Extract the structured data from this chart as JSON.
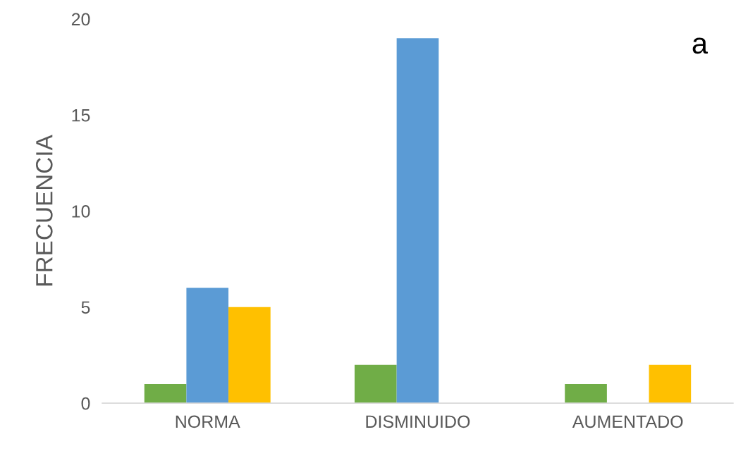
{
  "chart_data": {
    "type": "bar",
    "ylabel": "FRECUENCIA",
    "categories": [
      "NORMA",
      "DISMINUIDO",
      "AUMENTADO"
    ],
    "series": [
      {
        "color": "#70ad47",
        "values": [
          1,
          2,
          1
        ]
      },
      {
        "color": "#5b9bd5",
        "values": [
          6,
          19,
          0
        ]
      },
      {
        "color": "#ffc000",
        "values": [
          5,
          0,
          2
        ]
      }
    ],
    "ylim": [
      0,
      20
    ],
    "yticks": [
      0,
      5,
      10,
      15,
      20
    ],
    "grid": false,
    "legend": false,
    "annotations": [
      "a"
    ]
  }
}
